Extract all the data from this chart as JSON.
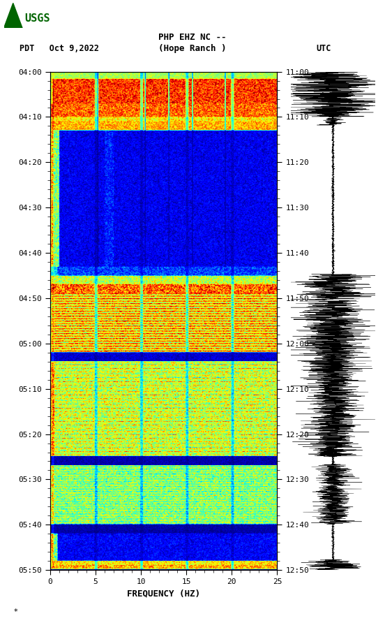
{
  "title_line1": "PHP EHZ NC --",
  "title_line2": "(Hope Ranch )",
  "left_label": "PDT   Oct 9,2022",
  "right_label": "UTC",
  "xlabel": "FREQUENCY (HZ)",
  "left_yticks": [
    "04:00",
    "04:10",
    "04:20",
    "04:30",
    "04:40",
    "04:50",
    "05:00",
    "05:10",
    "05:20",
    "05:30",
    "05:40",
    "05:50"
  ],
  "right_yticks": [
    "11:00",
    "11:10",
    "11:20",
    "11:30",
    "11:40",
    "11:50",
    "12:00",
    "12:10",
    "12:20",
    "12:30",
    "12:40",
    "12:50"
  ],
  "xlim": [
    0,
    25
  ],
  "freq_ticks": [
    0,
    5,
    10,
    15,
    20,
    25
  ],
  "n_time": 600,
  "n_freq": 250,
  "background_color": "#ffffff",
  "usgs_green": "#006400",
  "spectrogram_cmap": "jet",
  "fig_width": 5.52,
  "fig_height": 8.92
}
